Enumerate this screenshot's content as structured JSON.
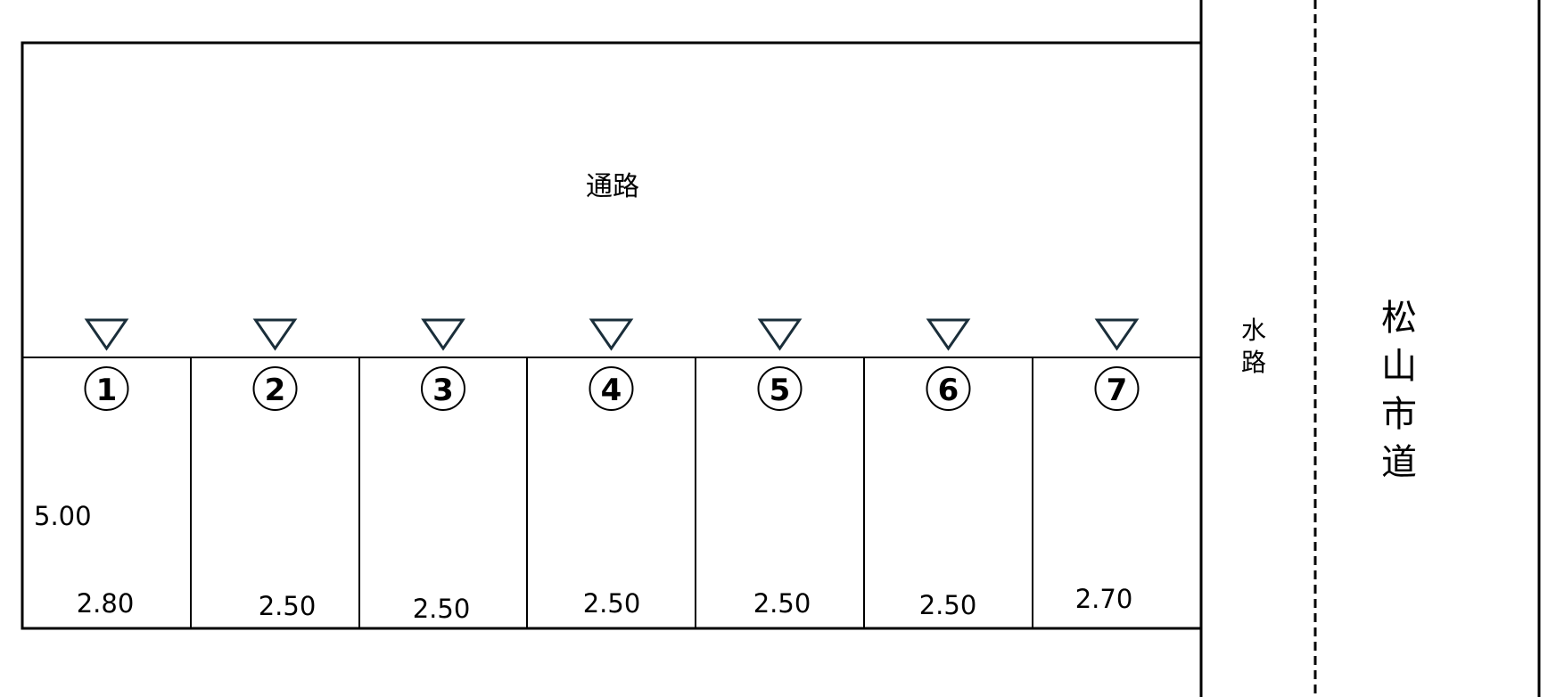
{
  "passage_label": "通路",
  "waterway_label": [
    "水",
    "路"
  ],
  "road_label": [
    "松",
    "山",
    "市",
    "道"
  ],
  "depth_label": "5.00",
  "lots": [
    {
      "number": "①",
      "width": "2.80"
    },
    {
      "number": "②",
      "width": "2.50"
    },
    {
      "number": "③",
      "width": "2.50"
    },
    {
      "number": "④",
      "width": "2.50"
    },
    {
      "number": "⑤",
      "width": "2.50"
    },
    {
      "number": "⑥",
      "width": "2.50"
    },
    {
      "number": "⑦",
      "width": "2.70"
    }
  ],
  "entrance_marker_icon": "down-triangle",
  "colors": {
    "line": "#000000",
    "marker": "#1a2e3a"
  }
}
